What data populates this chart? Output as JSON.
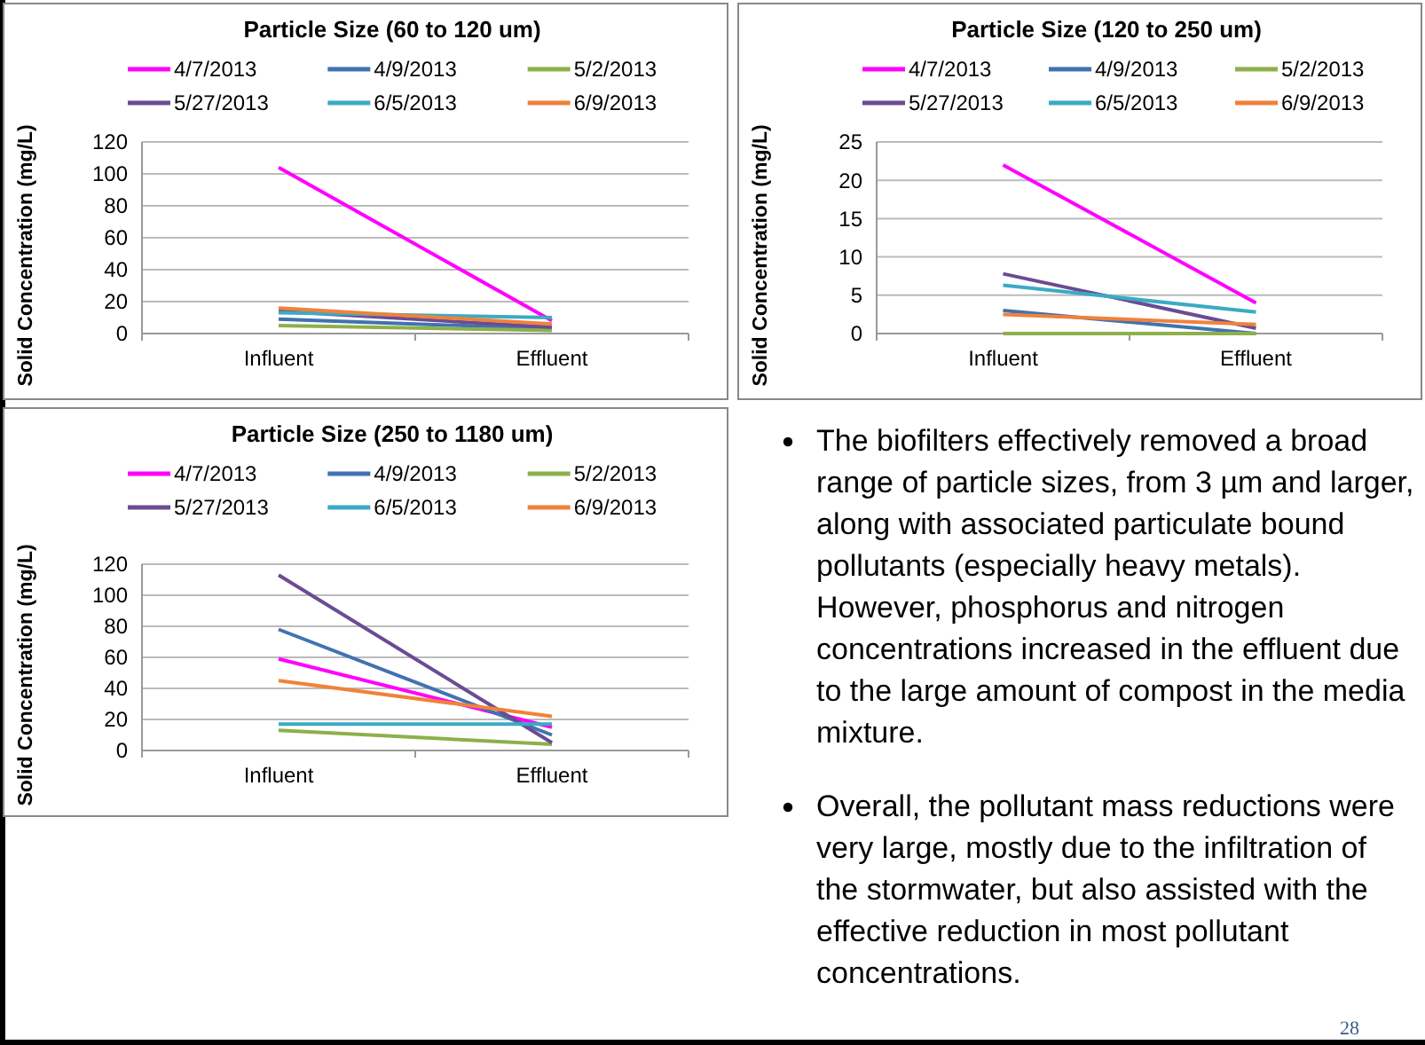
{
  "chart_data": [
    {
      "type": "line",
      "title": "Particle Size (60 to 120 um)",
      "ylabel": "Solid Concentration (mg/L)",
      "categories": [
        "Influent",
        "Effluent"
      ],
      "ylim": [
        0,
        120
      ],
      "yticks": [
        0,
        20,
        40,
        60,
        80,
        100,
        120
      ],
      "grid": "y",
      "legend": "top",
      "marker": "none",
      "series": [
        {
          "name": "4/7/2013",
          "color": "#ff00ff",
          "values": [
            104,
            8
          ]
        },
        {
          "name": "4/9/2013",
          "color": "#4172b0",
          "values": [
            9,
            3
          ]
        },
        {
          "name": "5/2/2013",
          "color": "#8db04a",
          "values": [
            5,
            2
          ]
        },
        {
          "name": "5/27/2013",
          "color": "#6a4c93",
          "values": [
            14,
            4
          ]
        },
        {
          "name": "6/5/2013",
          "color": "#3aabc4",
          "values": [
            13,
            10
          ]
        },
        {
          "name": "6/9/2013",
          "color": "#f0823a",
          "values": [
            16,
            6
          ]
        }
      ]
    },
    {
      "type": "line",
      "title": "Particle Size (120 to 250 um)",
      "ylabel": "Solid Concentration (mg/L)",
      "categories": [
        "Influent",
        "Effluent"
      ],
      "ylim": [
        0,
        25
      ],
      "yticks": [
        0,
        5,
        10,
        15,
        20,
        25
      ],
      "grid": "y",
      "legend": "top",
      "marker": "none",
      "series": [
        {
          "name": "4/7/2013",
          "color": "#ff00ff",
          "values": [
            22,
            4
          ]
        },
        {
          "name": "4/9/2013",
          "color": "#4172b0",
          "values": [
            3,
            0
          ]
        },
        {
          "name": "5/2/2013",
          "color": "#8db04a",
          "values": [
            0,
            0
          ]
        },
        {
          "name": "5/27/2013",
          "color": "#6a4c93",
          "values": [
            7.8,
            0.7
          ]
        },
        {
          "name": "6/5/2013",
          "color": "#3aabc4",
          "values": [
            6.3,
            2.8
          ]
        },
        {
          "name": "6/9/2013",
          "color": "#f0823a",
          "values": [
            2.5,
            1.2
          ]
        }
      ]
    },
    {
      "type": "line",
      "title": "Particle Size (250 to 1180 um)",
      "ylabel": "Solid Concentration (mg/L)",
      "categories": [
        "Influent",
        "Effluent"
      ],
      "ylim": [
        0,
        120
      ],
      "yticks": [
        0,
        20,
        40,
        60,
        80,
        100,
        120
      ],
      "grid": "y",
      "legend": "top",
      "marker": "none",
      "series": [
        {
          "name": "4/7/2013",
          "color": "#ff00ff",
          "values": [
            59,
            15
          ]
        },
        {
          "name": "4/9/2013",
          "color": "#4172b0",
          "values": [
            78,
            10
          ]
        },
        {
          "name": "5/2/2013",
          "color": "#8db04a",
          "values": [
            13,
            4
          ]
        },
        {
          "name": "5/27/2013",
          "color": "#6a4c93",
          "values": [
            113,
            5
          ]
        },
        {
          "name": "6/5/2013",
          "color": "#3aabc4",
          "values": [
            17,
            17
          ]
        },
        {
          "name": "6/9/2013",
          "color": "#f0823a",
          "values": [
            45,
            22
          ]
        }
      ]
    },
    {
      "type": "other",
      "annotations": [
        "The biofilters effectively removed a broad range of particle sizes, from 3 µm and larger, along with associated particulate bound pollutants (especially heavy metals). However, phosphorus and nitrogen concentrations increased in the effluent due to the large amount of compost in the media mixture.",
        "Overall, the pollutant mass reductions were very large, mostly due to the infiltration of the stormwater, but also assisted with the effective reduction in most pollutant concentrations.",
        "28"
      ]
    }
  ]
}
